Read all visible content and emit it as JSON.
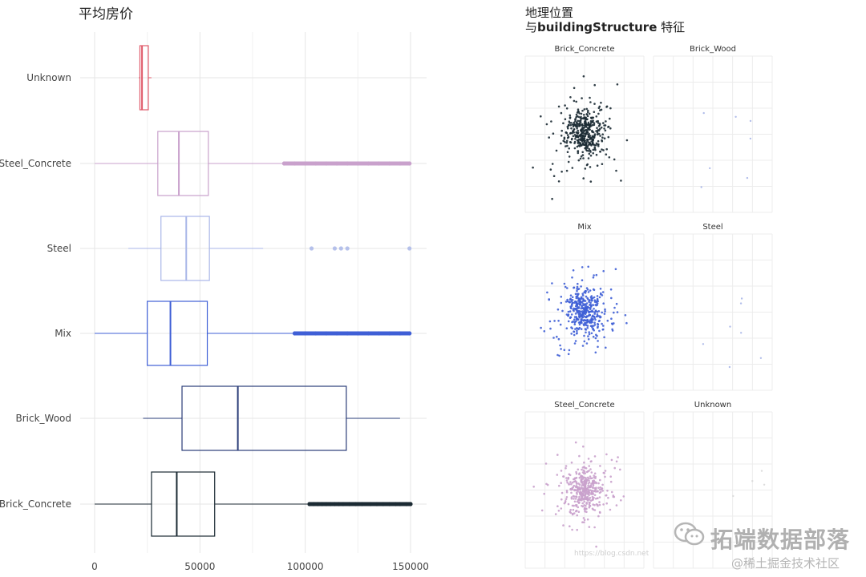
{
  "chart_data": [
    {
      "type": "boxplot",
      "title": "平均房价",
      "orientation": "horizontal",
      "xlim": [
        0,
        150000
      ],
      "x_ticks": [
        0,
        50000,
        100000,
        150000
      ],
      "x_tick_labels": [
        "0",
        "50000",
        "100000",
        "150000"
      ],
      "grid": true,
      "categories": [
        "Unknown",
        "Steel_Concrete",
        "Steel",
        "Mix",
        "Brick_Wood",
        "Brick_Concrete"
      ],
      "colors": {
        "Unknown": "#e05a6a",
        "Steel_Concrete": "#c9a1cc",
        "Steel": "#a9b6e8",
        "Mix": "#3f5fd6",
        "Brick_Wood": "#2a3c78",
        "Brick_Concrete": "#1b2a33"
      },
      "boxes": [
        {
          "name": "Unknown",
          "whisker_low": 21000,
          "q1": 21500,
          "median": 22500,
          "q3": 25500,
          "whisker_high": 27000,
          "outliers": []
        },
        {
          "name": "Steel_Concrete",
          "whisker_low": 0,
          "q1": 30000,
          "median": 40000,
          "q3": 54000,
          "whisker_high": 90000,
          "outliers": [
            90000,
            95000,
            100000,
            105000,
            110000,
            115000,
            120000,
            125000,
            130000,
            135000,
            140000,
            145000,
            149500
          ]
        },
        {
          "name": "Steel",
          "whisker_low": 16000,
          "q1": 31500,
          "median": 43500,
          "q3": 54500,
          "whisker_high": 80000,
          "outliers": [
            103000,
            114000,
            117000,
            120000,
            149500
          ]
        },
        {
          "name": "Mix",
          "whisker_low": 0,
          "q1": 25000,
          "median": 36000,
          "q3": 53500,
          "whisker_high": 95000,
          "outliers": [
            95000,
            100000,
            105000,
            110000,
            115000,
            120000,
            125000,
            130000,
            135000,
            140000,
            145000,
            149500
          ]
        },
        {
          "name": "Brick_Wood",
          "whisker_low": 23000,
          "q1": 41500,
          "median": 68000,
          "q3": 119500,
          "whisker_high": 145000,
          "outliers": []
        },
        {
          "name": "Brick_Concrete",
          "whisker_low": 0,
          "q1": 27000,
          "median": 39000,
          "q3": 57000,
          "whisker_high": 101000,
          "outliers": [
            102000,
            104000,
            106000,
            108000,
            110000,
            112000,
            114000,
            116000,
            118000,
            121000,
            124000,
            127000,
            131000,
            134000,
            137000,
            140000,
            143000,
            145000,
            148000,
            150000
          ]
        }
      ]
    },
    {
      "type": "scatter",
      "title": "地理位置",
      "subtitle_plain": "与",
      "subtitle_bold": "buildingStructure",
      "subtitle_tail": " 特征",
      "facets": [
        "Brick_Concrete",
        "Brick_Wood",
        "Mix",
        "Steel",
        "Steel_Concrete",
        "Unknown"
      ],
      "facet_colors": {
        "Brick_Concrete": "#1b2a33",
        "Brick_Wood": "#a9b6e8",
        "Mix": "#3f5fd6",
        "Steel": "#a9b6e8",
        "Steel_Concrete": "#c9a1cc",
        "Unknown": "#d9d9d9"
      },
      "facet_density": {
        "Brick_Concrete": "dense",
        "Brick_Wood": "sparse",
        "Mix": "dense",
        "Steel": "sparse",
        "Steel_Concrete": "dense",
        "Unknown": "sparse"
      }
    }
  ],
  "watermark": {
    "brand": "拓端数据部落",
    "site": "@稀土掘金技术社区",
    "mid": "https://blog.csdn.net"
  }
}
